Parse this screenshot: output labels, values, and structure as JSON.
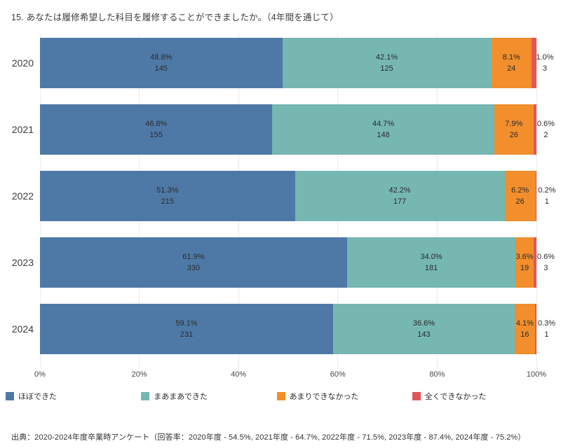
{
  "page": {
    "title": "15. あなたは履修希望した科目を履修することができましたか。（4年間を通じて）",
    "source_note": "出典：2020-2024年度卒業時アンケート（回答率：2020年度 - 54.5%, 2021年度 - 64.7%, 2022年度 - 71.5%, 2023年度 - 87.4%, 2024年度 - 75.2%）"
  },
  "chart_data": {
    "type": "bar",
    "orientation": "horizontal",
    "stacked": true,
    "unit": "percent",
    "categories": [
      "2020",
      "2021",
      "2022",
      "2023",
      "2024"
    ],
    "series": [
      {
        "name": "ほぼできた",
        "color": "#4e79a7",
        "percents": [
          48.8,
          46.8,
          51.3,
          61.9,
          59.1
        ],
        "counts": [
          145,
          155,
          215,
          330,
          231
        ]
      },
      {
        "name": "まあまあできた",
        "color": "#76b7b2",
        "percents": [
          42.1,
          44.7,
          42.2,
          34.0,
          36.6
        ],
        "counts": [
          125,
          148,
          177,
          181,
          143
        ]
      },
      {
        "name": "あまりできなかった",
        "color": "#f28e2b",
        "percents": [
          8.1,
          7.9,
          6.2,
          3.6,
          4.1
        ],
        "counts": [
          24,
          26,
          26,
          19,
          16
        ]
      },
      {
        "name": "全くできなかった",
        "color": "#e15759",
        "percents": [
          1.0,
          0.6,
          0.2,
          0.6,
          0.3
        ],
        "counts": [
          3,
          2,
          1,
          3,
          1
        ]
      }
    ],
    "x_ticks": [
      {
        "label": "0%",
        "value": 0
      },
      {
        "label": "20%",
        "value": 20
      },
      {
        "label": "40%",
        "value": 40
      },
      {
        "label": "60%",
        "value": 60
      },
      {
        "label": "80%",
        "value": 80
      },
      {
        "label": "100%",
        "value": 100
      }
    ],
    "xlim": [
      0,
      100
    ],
    "grid": true,
    "legend_position": "bottom",
    "bar_label_format": "percent_and_count"
  }
}
